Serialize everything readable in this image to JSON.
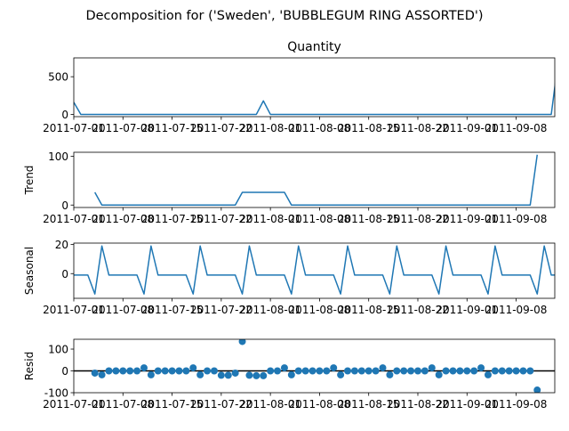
{
  "figure": {
    "suptitle": "Decomposition for ('Sweden', 'BUBBLEGUM RING ASSORTED')"
  },
  "colors": {
    "line": "#1f77b4",
    "marker": "#1f77b4",
    "axis": "#000000",
    "zero_line": "#000000"
  },
  "chart_data": [
    {
      "type": "line",
      "title": "Quantity",
      "ylabel": "",
      "ylim": [
        -30,
        750
      ],
      "yticks": [
        0,
        500
      ],
      "ytick_labels": [
        "0",
        "500"
      ],
      "xlim": [
        0,
        68.5
      ],
      "xticks": [
        0,
        7,
        14,
        21,
        28,
        35,
        42,
        49,
        56,
        63
      ],
      "xtick_labels": [
        "2011-07-01",
        "2011-07-08",
        "2011-07-15",
        "2011-07-22",
        "2011-08-01",
        "2011-08-08",
        "2011-08-15",
        "2011-08-22",
        "2011-09-01",
        "2011-09-08"
      ],
      "x": [
        0,
        1,
        2,
        3,
        4,
        5,
        6,
        7,
        8,
        9,
        10,
        11,
        12,
        13,
        14,
        15,
        16,
        17,
        18,
        19,
        20,
        21,
        22,
        23,
        24,
        25,
        26,
        27,
        28,
        29,
        30,
        31,
        32,
        33,
        34,
        35,
        36,
        37,
        38,
        39,
        40,
        41,
        42,
        43,
        44,
        45,
        46,
        47,
        48,
        49,
        50,
        51,
        52,
        53,
        54,
        55,
        56,
        57,
        58,
        59,
        60,
        61,
        62,
        63,
        64,
        65,
        66,
        67,
        68,
        69
      ],
      "values": [
        160,
        0,
        0,
        0,
        0,
        0,
        0,
        0,
        0,
        0,
        0,
        0,
        0,
        0,
        0,
        0,
        0,
        0,
        0,
        0,
        0,
        0,
        0,
        0,
        0,
        0,
        0,
        180,
        0,
        0,
        0,
        0,
        0,
        0,
        0,
        0,
        0,
        0,
        0,
        0,
        0,
        0,
        0,
        0,
        0,
        0,
        0,
        0,
        0,
        0,
        0,
        0,
        0,
        0,
        0,
        0,
        0,
        0,
        0,
        0,
        0,
        0,
        0,
        0,
        0,
        0,
        0,
        0,
        0,
        720
      ]
    },
    {
      "type": "line",
      "title": "",
      "ylabel": "Trend",
      "ylim": [
        -5,
        108
      ],
      "yticks": [
        0,
        100
      ],
      "ytick_labels": [
        "0",
        "100"
      ],
      "xlim": [
        0,
        68.5
      ],
      "xticks": [
        0,
        7,
        14,
        21,
        28,
        35,
        42,
        49,
        56,
        63
      ],
      "xtick_labels": [
        "2011-07-01",
        "2011-07-08",
        "2011-07-15",
        "2011-07-22",
        "2011-08-01",
        "2011-08-08",
        "2011-08-15",
        "2011-08-22",
        "2011-09-01",
        "2011-09-08"
      ],
      "x": [
        3,
        4,
        5,
        6,
        7,
        8,
        9,
        10,
        11,
        12,
        13,
        14,
        15,
        16,
        17,
        18,
        19,
        20,
        21,
        22,
        23,
        24,
        25,
        26,
        27,
        28,
        29,
        30,
        31,
        32,
        33,
        34,
        35,
        36,
        37,
        38,
        39,
        40,
        41,
        42,
        43,
        44,
        45,
        46,
        47,
        48,
        49,
        50,
        51,
        52,
        53,
        54,
        55,
        56,
        57,
        58,
        59,
        60,
        61,
        62,
        63,
        64,
        65,
        66
      ],
      "values": [
        26,
        0,
        0,
        0,
        0,
        0,
        0,
        0,
        0,
        0,
        0,
        0,
        0,
        0,
        0,
        0,
        0,
        0,
        0,
        0,
        0,
        26,
        26,
        26,
        26,
        26,
        26,
        26,
        0,
        0,
        0,
        0,
        0,
        0,
        0,
        0,
        0,
        0,
        0,
        0,
        0,
        0,
        0,
        0,
        0,
        0,
        0,
        0,
        0,
        0,
        0,
        0,
        0,
        0,
        0,
        0,
        0,
        0,
        0,
        0,
        0,
        0,
        0,
        103
      ]
    },
    {
      "type": "line",
      "title": "",
      "ylabel": "Seasonal",
      "ylim": [
        -17,
        21
      ],
      "yticks": [
        0,
        20
      ],
      "ytick_labels": [
        "0",
        "20"
      ],
      "xlim": [
        0,
        68.5
      ],
      "xticks": [
        0,
        7,
        14,
        21,
        28,
        35,
        42,
        49,
        56,
        63
      ],
      "xtick_labels": [
        "2011-07-01",
        "2011-07-08",
        "2011-07-15",
        "2011-07-22",
        "2011-08-01",
        "2011-08-08",
        "2011-08-15",
        "2011-08-22",
        "2011-09-01",
        "2011-09-08"
      ],
      "x": [
        0,
        1,
        2,
        3,
        4,
        5,
        6,
        7,
        8,
        9,
        10,
        11,
        12,
        13,
        14,
        15,
        16,
        17,
        18,
        19,
        20,
        21,
        22,
        23,
        24,
        25,
        26,
        27,
        28,
        29,
        30,
        31,
        32,
        33,
        34,
        35,
        36,
        37,
        38,
        39,
        40,
        41,
        42,
        43,
        44,
        45,
        46,
        47,
        48,
        49,
        50,
        51,
        52,
        53,
        54,
        55,
        56,
        57,
        58,
        59,
        60,
        61,
        62,
        63,
        64,
        65,
        66,
        67,
        68,
        69
      ],
      "values": [
        -1,
        -1,
        -1,
        -14,
        19,
        -1,
        -1,
        -1,
        -1,
        -1,
        -14,
        19,
        -1,
        -1,
        -1,
        -1,
        -1,
        -14,
        19,
        -1,
        -1,
        -1,
        -1,
        -1,
        -14,
        19,
        -1,
        -1,
        -1,
        -1,
        -1,
        -14,
        19,
        -1,
        -1,
        -1,
        -1,
        -1,
        -14,
        19,
        -1,
        -1,
        -1,
        -1,
        -1,
        -14,
        19,
        -1,
        -1,
        -1,
        -1,
        -1,
        -14,
        19,
        -1,
        -1,
        -1,
        -1,
        -1,
        -14,
        19,
        -1,
        -1,
        -1,
        -1,
        -1,
        -14,
        19,
        -1,
        -1
      ]
    },
    {
      "type": "scatter",
      "title": "",
      "ylabel": "Resid",
      "ylim": [
        -100,
        145
      ],
      "yticks": [
        -100,
        0,
        100
      ],
      "ytick_labels": [
        "-100",
        "0",
        "100"
      ],
      "xlim": [
        0,
        68.5
      ],
      "xticks": [
        0,
        7,
        14,
        21,
        28,
        35,
        42,
        49,
        56,
        63
      ],
      "xtick_labels": [
        "2011-07-01",
        "2011-07-08",
        "2011-07-15",
        "2011-07-22",
        "2011-08-01",
        "2011-08-08",
        "2011-08-15",
        "2011-08-22",
        "2011-09-01",
        "2011-09-08"
      ],
      "x": [
        3,
        4,
        5,
        6,
        7,
        8,
        9,
        10,
        11,
        12,
        13,
        14,
        15,
        16,
        17,
        18,
        19,
        20,
        21,
        22,
        23,
        24,
        25,
        26,
        27,
        28,
        29,
        30,
        31,
        32,
        33,
        34,
        35,
        36,
        37,
        38,
        39,
        40,
        41,
        42,
        43,
        44,
        45,
        46,
        47,
        48,
        49,
        50,
        51,
        52,
        53,
        54,
        55,
        56,
        57,
        58,
        59,
        60,
        61,
        62,
        63,
        64,
        65,
        66
      ],
      "values": [
        -10,
        -18,
        0,
        0,
        0,
        0,
        0,
        14,
        -18,
        0,
        0,
        0,
        0,
        0,
        14,
        -18,
        0,
        0,
        -20,
        -20,
        -10,
        135,
        -20,
        -22,
        -22,
        0,
        0,
        14,
        -18,
        0,
        0,
        0,
        0,
        0,
        14,
        -18,
        0,
        0,
        0,
        0,
        0,
        14,
        -18,
        0,
        0,
        0,
        0,
        0,
        14,
        -18,
        0,
        0,
        0,
        0,
        0,
        14,
        -18,
        0,
        0,
        0,
        0,
        0,
        0,
        -88
      ]
    }
  ]
}
